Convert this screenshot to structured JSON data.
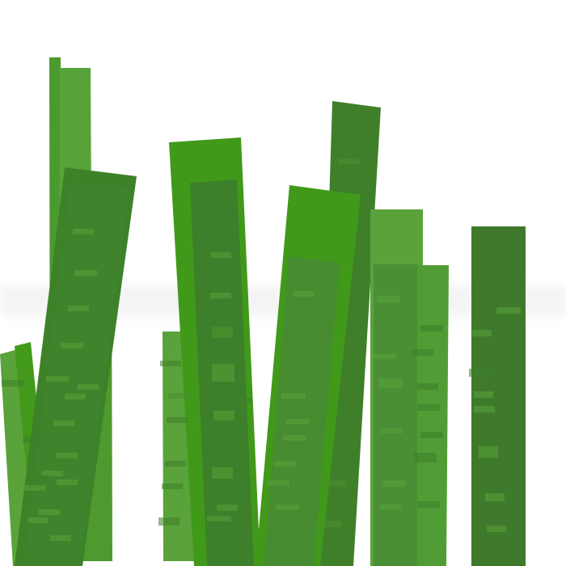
{
  "scene": {
    "subject": "green-blades",
    "colors": {
      "background": "#ffffff",
      "haze": "#f2f2f2",
      "dark_green": "#3f7f2a",
      "mid_green": "#4a8f30",
      "bright_green": "#42991a",
      "light_green": "#5aa23a"
    }
  }
}
